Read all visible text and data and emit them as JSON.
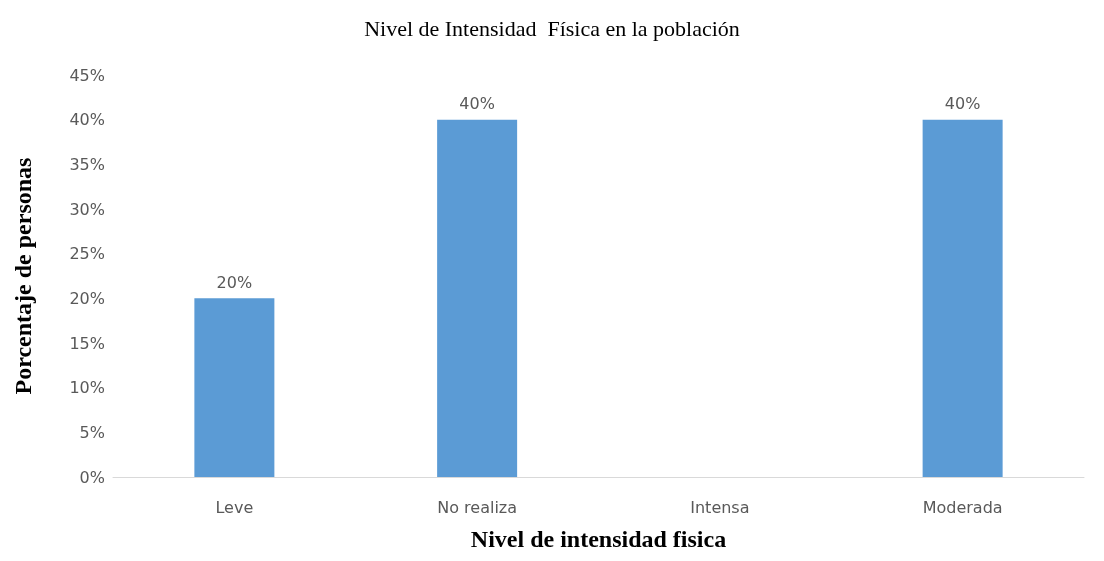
{
  "chart_data": {
    "type": "bar",
    "title": "Nivel de Intensidad  Física en la población",
    "xlabel": "Nivel de intensidad fisica",
    "ylabel": "Porcentaje de personas",
    "categories": [
      "Leve",
      "No realiza",
      "Intensa",
      "Moderada"
    ],
    "values": [
      20,
      40,
      0,
      40
    ],
    "color": "#5b9bd5",
    "value_labels": [
      "20%",
      "40%",
      null,
      "40%"
    ],
    "ylim": [
      0,
      45
    ],
    "yticks": [
      {
        "value": 0,
        "label": "0%"
      },
      {
        "value": 5,
        "label": "5%"
      },
      {
        "value": 10,
        "label": "10%"
      },
      {
        "value": 15,
        "label": "15%"
      },
      {
        "value": 20,
        "label": "20%"
      },
      {
        "value": 25,
        "label": "25%"
      },
      {
        "value": 30,
        "label": "30%"
      },
      {
        "value": 35,
        "label": "35%"
      },
      {
        "value": 40,
        "label": "40%"
      },
      {
        "value": 45,
        "label": "45%"
      }
    ],
    "grid": false
  }
}
